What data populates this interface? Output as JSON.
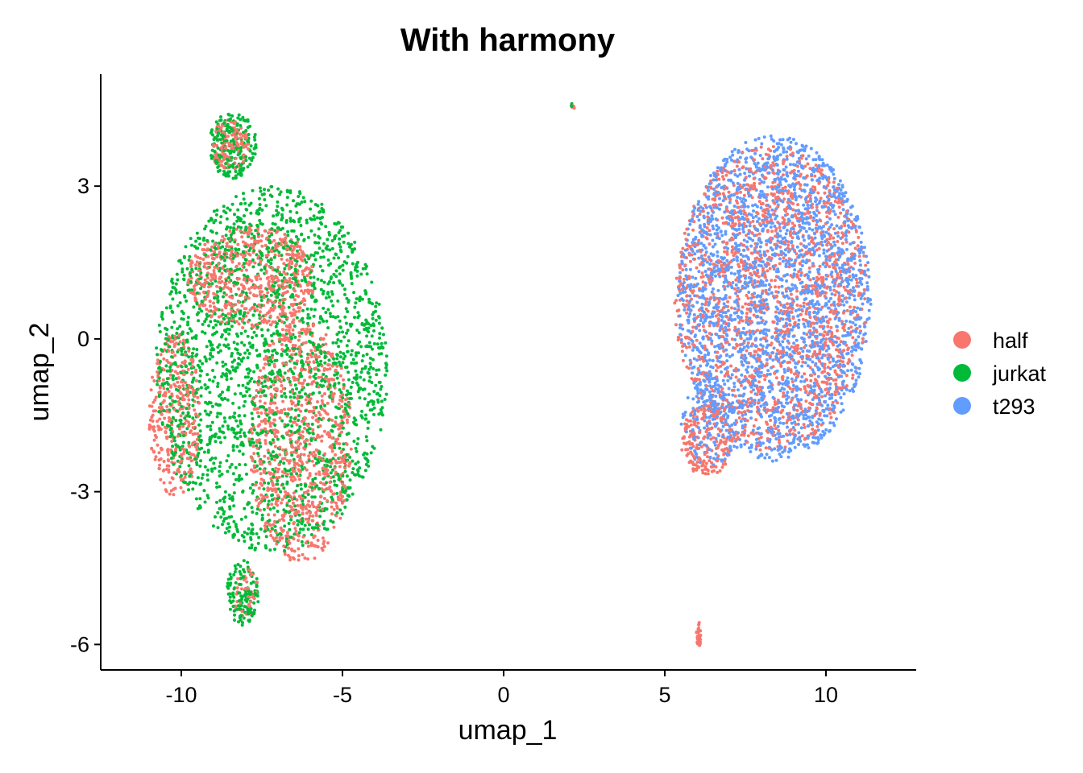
{
  "chart_data": {
    "type": "scatter",
    "title": "With harmony",
    "xlabel": "umap_1",
    "ylabel": "umap_2",
    "xlim": [
      -12.5,
      12.8
    ],
    "ylim": [
      -6.5,
      5.2
    ],
    "x_ticks": [
      -10,
      -5,
      0,
      5,
      10
    ],
    "x_tick_labels": [
      "-10",
      "-5",
      "0",
      "5",
      "10"
    ],
    "y_ticks": [
      -6,
      -3,
      0,
      3
    ],
    "y_tick_labels": [
      "-6",
      "-3",
      "0",
      "3"
    ],
    "grid": false,
    "legend_position": "right",
    "series": [
      {
        "name": "half",
        "color": "#F8766D",
        "clusters": [
          {
            "cx": -6.3,
            "cy": -2.0,
            "rx": 1.6,
            "ry": 2.4,
            "n": 900
          },
          {
            "cx": -7.8,
            "cy": 1.2,
            "rx": 2.0,
            "ry": 1.0,
            "n": 600
          },
          {
            "cx": -10.2,
            "cy": -1.5,
            "rx": 0.8,
            "ry": 1.6,
            "n": 350
          },
          {
            "cx": -8.5,
            "cy": 3.8,
            "rx": 0.6,
            "ry": 0.5,
            "n": 150
          },
          {
            "cx": -8.0,
            "cy": -5.0,
            "rx": 0.4,
            "ry": 0.5,
            "n": 50
          },
          {
            "cx": 8.3,
            "cy": 0.8,
            "rx": 3.0,
            "ry": 3.0,
            "n": 1600
          },
          {
            "cx": 6.3,
            "cy": -2.0,
            "rx": 0.8,
            "ry": 0.7,
            "n": 200
          },
          {
            "cx": 6.05,
            "cy": -5.8,
            "rx": 0.07,
            "ry": 0.25,
            "n": 30
          },
          {
            "cx": 2.15,
            "cy": 4.55,
            "rx": 0.06,
            "ry": 0.05,
            "n": 4
          }
        ]
      },
      {
        "name": "jurkat",
        "color": "#00BA38",
        "clusters": [
          {
            "cx": -7.2,
            "cy": -0.6,
            "rx": 3.6,
            "ry": 3.6,
            "n": 2300
          },
          {
            "cx": -8.4,
            "cy": 3.8,
            "rx": 0.75,
            "ry": 0.65,
            "n": 200
          },
          {
            "cx": -8.1,
            "cy": -5.0,
            "rx": 0.5,
            "ry": 0.65,
            "n": 130
          },
          {
            "cx": 2.1,
            "cy": 4.6,
            "rx": 0.06,
            "ry": 0.05,
            "n": 3
          }
        ]
      },
      {
        "name": "t293",
        "color": "#619CFF",
        "clusters": [
          {
            "cx": 8.4,
            "cy": 0.8,
            "rx": 3.0,
            "ry": 3.2,
            "n": 2500
          },
          {
            "cx": 6.4,
            "cy": -1.6,
            "rx": 0.9,
            "ry": 0.9,
            "n": 150
          }
        ]
      }
    ]
  }
}
